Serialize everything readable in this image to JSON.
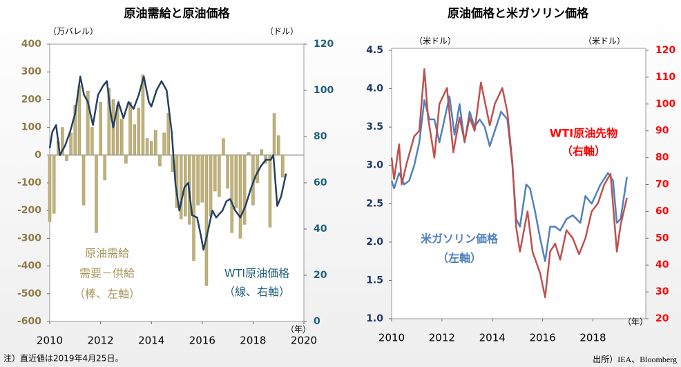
{
  "chart_data": [
    {
      "type": "combo",
      "title": "原油需給と原油価格",
      "ylabel": "（万バレル）",
      "y2label": "（ドル）",
      "xlabel": "（年）",
      "xlim": [
        2010,
        2020
      ],
      "xticks": [
        2010,
        2012,
        2014,
        2016,
        2018,
        2020
      ],
      "ylim": [
        -600,
        400
      ],
      "yticks": [
        -600,
        -500,
        -400,
        -300,
        -200,
        -100,
        0,
        100,
        200,
        300,
        400
      ],
      "ytick_color": "#8c7b45",
      "y2lim": [
        0,
        120
      ],
      "y2ticks": [
        0,
        20,
        40,
        60,
        80,
        100,
        120
      ],
      "y2tick_color": "#1f5f7a",
      "series": [
        {
          "name": "原油需給",
          "type": "bar",
          "color": "#bfb27a",
          "x": [
            2010.0,
            2010.167,
            2010.333,
            2010.5,
            2010.667,
            2010.833,
            2011.0,
            2011.167,
            2011.333,
            2011.5,
            2011.667,
            2011.833,
            2012.0,
            2012.167,
            2012.333,
            2012.5,
            2012.667,
            2012.833,
            2013.0,
            2013.167,
            2013.333,
            2013.5,
            2013.667,
            2013.833,
            2014.0,
            2014.167,
            2014.333,
            2014.5,
            2014.667,
            2014.833,
            2015.0,
            2015.167,
            2015.333,
            2015.5,
            2015.667,
            2015.833,
            2016.0,
            2016.167,
            2016.333,
            2016.5,
            2016.667,
            2016.833,
            2017.0,
            2017.167,
            2017.333,
            2017.5,
            2017.667,
            2017.833,
            2018.0,
            2018.167,
            2018.333,
            2018.5,
            2018.667,
            2018.833,
            2019.0,
            2019.167
          ],
          "values": [
            -240,
            -210,
            50,
            100,
            -20,
            80,
            180,
            250,
            -180,
            230,
            100,
            -280,
            190,
            -90,
            240,
            200,
            180,
            130,
            -30,
            190,
            110,
            170,
            290,
            60,
            50,
            90,
            -40,
            80,
            150,
            -60,
            -190,
            -230,
            -220,
            -250,
            -380,
            -180,
            -170,
            -470,
            -220,
            -130,
            -150,
            60,
            -120,
            -280,
            -190,
            -300,
            -250,
            10,
            -180,
            -100,
            20,
            -30,
            -260,
            150,
            70,
            -80
          ]
        },
        {
          "name": "WTI原油価格",
          "type": "line",
          "axis": "y2",
          "color": "#243f60",
          "x": [
            2010.0,
            2010.1,
            2010.25,
            2010.4,
            2010.6,
            2010.8,
            2011.0,
            2011.2,
            2011.35,
            2011.5,
            2011.7,
            2011.9,
            2012.1,
            2012.25,
            2012.4,
            2012.5,
            2012.7,
            2012.9,
            2013.1,
            2013.3,
            2013.5,
            2013.7,
            2013.9,
            2014.0,
            2014.2,
            2014.4,
            2014.6,
            2014.8,
            2014.95,
            2015.1,
            2015.3,
            2015.45,
            2015.6,
            2015.8,
            2015.95,
            2016.05,
            2016.2,
            2016.4,
            2016.55,
            2016.8,
            2016.95,
            2017.1,
            2017.3,
            2017.5,
            2017.7,
            2017.9,
            2018.1,
            2018.3,
            2018.5,
            2018.7,
            2018.8,
            2018.95,
            2019.1,
            2019.3
          ],
          "values": [
            75,
            82,
            85,
            72,
            76,
            82,
            90,
            106,
            98,
            95,
            85,
            98,
            102,
            104,
            90,
            84,
            95,
            88,
            95,
            92,
            98,
            106,
            95,
            93,
            100,
            104,
            100,
            82,
            59,
            48,
            58,
            60,
            46,
            45,
            37,
            31,
            38,
            48,
            45,
            48,
            52,
            53,
            48,
            45,
            50,
            57,
            63,
            67,
            70,
            70,
            72,
            50,
            54,
            64
          ]
        }
      ],
      "annotations": [
        {
          "text": "原油需給",
          "color": "#a8975c"
        },
        {
          "text": "需要－供給",
          "color": "#a8975c"
        },
        {
          "text": "（棒、左軸）",
          "color": "#a8975c"
        },
        {
          "text": "WTI原油価格",
          "color": "#1f5f7a"
        },
        {
          "text": "（線、右軸）",
          "color": "#1f5f7a"
        }
      ]
    },
    {
      "type": "line",
      "title": "原油価格と米ガソリン価格",
      "ylabel": "（米ドル）",
      "y2label": "（米ドル）",
      "xlabel": "（年）",
      "xlim": [
        2010,
        2020.1
      ],
      "xticks": [
        2010,
        2012,
        2014,
        2016,
        2018
      ],
      "ylim": [
        1.0,
        4.5
      ],
      "yticks": [
        {
          "value": 1.0,
          "label": "1.0"
        },
        1.5,
        {
          "value": 2.0,
          "label": "2.0"
        },
        2.5,
        {
          "value": 3.0,
          "label": "3.0"
        },
        3.5,
        {
          "value": 4.0,
          "label": "4.0"
        },
        4.5
      ],
      "ytick_color": "#1f3864",
      "y2lim": [
        20,
        120
      ],
      "y2ticks": [
        20,
        30,
        40,
        50,
        60,
        70,
        80,
        90,
        100,
        110,
        120
      ],
      "y2tick_color": "#ff0000",
      "series": [
        {
          "name": "米ガソリン価格",
          "type": "line",
          "color": "#4f81bd",
          "x": [
            2010.0,
            2010.1,
            2010.3,
            2010.5,
            2010.7,
            2010.9,
            2011.1,
            2011.3,
            2011.5,
            2011.7,
            2011.9,
            2012.1,
            2012.3,
            2012.5,
            2012.7,
            2012.9,
            2013.1,
            2013.3,
            2013.5,
            2013.7,
            2013.9,
            2014.1,
            2014.35,
            2014.6,
            2014.8,
            2014.95,
            2015.1,
            2015.35,
            2015.5,
            2015.7,
            2015.9,
            2016.1,
            2016.3,
            2016.5,
            2016.7,
            2016.95,
            2017.2,
            2017.5,
            2017.7,
            2017.95,
            2018.3,
            2018.6,
            2018.8,
            2018.95,
            2019.1,
            2019.35
          ],
          "values": [
            2.8,
            2.7,
            2.9,
            2.75,
            2.8,
            3.0,
            3.3,
            3.85,
            3.6,
            3.6,
            3.3,
            3.6,
            3.9,
            3.4,
            3.8,
            3.3,
            3.7,
            3.5,
            3.6,
            3.5,
            3.25,
            3.45,
            3.7,
            3.6,
            3.0,
            2.3,
            2.2,
            2.75,
            2.7,
            2.4,
            2.05,
            1.75,
            2.2,
            2.2,
            2.15,
            2.3,
            2.35,
            2.25,
            2.6,
            2.5,
            2.75,
            2.9,
            2.8,
            2.25,
            2.3,
            2.85
          ]
        },
        {
          "name": "WTI原油先物",
          "type": "line",
          "axis": "y2",
          "color": "#c0504d",
          "x": [
            2010.0,
            2010.1,
            2010.3,
            2010.4,
            2010.6,
            2010.9,
            2011.1,
            2011.3,
            2011.45,
            2011.7,
            2011.9,
            2012.2,
            2012.45,
            2012.7,
            2012.9,
            2013.1,
            2013.3,
            2013.55,
            2013.9,
            2014.1,
            2014.4,
            2014.6,
            2014.8,
            2014.95,
            2015.1,
            2015.4,
            2015.6,
            2015.9,
            2016.1,
            2016.3,
            2016.5,
            2016.7,
            2016.95,
            2017.2,
            2017.45,
            2017.7,
            2017.95,
            2018.2,
            2018.45,
            2018.7,
            2018.95,
            2019.1,
            2019.35
          ],
          "values": [
            80,
            72,
            85,
            70,
            78,
            88,
            90,
            113,
            95,
            80,
            100,
            106,
            82,
            95,
            86,
            95,
            90,
            108,
            92,
            100,
            106,
            97,
            78,
            54,
            45,
            60,
            45,
            37,
            28,
            45,
            48,
            42,
            53,
            50,
            44,
            50,
            60,
            63,
            70,
            74,
            45,
            55,
            65
          ]
        }
      ],
      "annotations": [
        {
          "text": "米ガソリン価格",
          "color": "#4f81bd"
        },
        {
          "text": "（左軸）",
          "color": "#4f81bd"
        },
        {
          "text": "WTI原油先物",
          "color": "#ff0000"
        },
        {
          "text": "（右軸）",
          "color": "#ff0000"
        }
      ]
    }
  ],
  "note": "注）直近値は2019年4月25日。",
  "source": "出所）IEA、Bloomberg"
}
